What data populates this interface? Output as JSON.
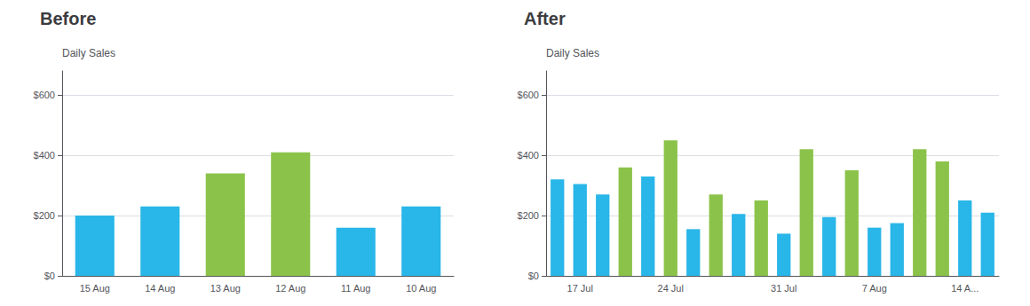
{
  "chart_data": [
    {
      "type": "bar",
      "title": "Before",
      "ylabel": "Daily Sales",
      "categories": [
        "15 Aug",
        "14 Aug",
        "13 Aug",
        "12 Aug",
        "11 Aug",
        "10 Aug"
      ],
      "values": [
        200,
        230,
        340,
        410,
        160,
        230
      ],
      "colors": [
        "#29b6e8",
        "#29b6e8",
        "#8bc34a",
        "#8bc34a",
        "#29b6e8",
        "#29b6e8"
      ],
      "ylim": [
        0,
        680
      ],
      "yticks": [
        {
          "value": 0,
          "label": "$0"
        },
        {
          "value": 200,
          "label": "$200"
        },
        {
          "value": 400,
          "label": "$400"
        },
        {
          "value": 600,
          "label": "$600"
        }
      ],
      "grid": true
    },
    {
      "type": "bar",
      "title": "After",
      "ylabel": "Daily Sales",
      "categories": [
        null,
        "17 Jul",
        null,
        null,
        null,
        "24 Jul",
        null,
        null,
        null,
        null,
        "31 Jul",
        null,
        null,
        null,
        "7 Aug",
        null,
        null,
        null,
        "14 A...",
        null
      ],
      "values": [
        320,
        305,
        270,
        360,
        330,
        450,
        155,
        270,
        205,
        250,
        140,
        420,
        195,
        350,
        160,
        175,
        420,
        380,
        250,
        210
      ],
      "colors": [
        "#29b6e8",
        "#29b6e8",
        "#29b6e8",
        "#8bc34a",
        "#29b6e8",
        "#8bc34a",
        "#29b6e8",
        "#8bc34a",
        "#29b6e8",
        "#8bc34a",
        "#29b6e8",
        "#8bc34a",
        "#29b6e8",
        "#8bc34a",
        "#29b6e8",
        "#29b6e8",
        "#8bc34a",
        "#8bc34a",
        "#29b6e8",
        "#29b6e8"
      ],
      "ylim": [
        0,
        680
      ],
      "yticks": [
        {
          "value": 0,
          "label": "$0"
        },
        {
          "value": 200,
          "label": "$200"
        },
        {
          "value": 400,
          "label": "$400"
        },
        {
          "value": 600,
          "label": "$600"
        }
      ],
      "grid": true
    }
  ]
}
